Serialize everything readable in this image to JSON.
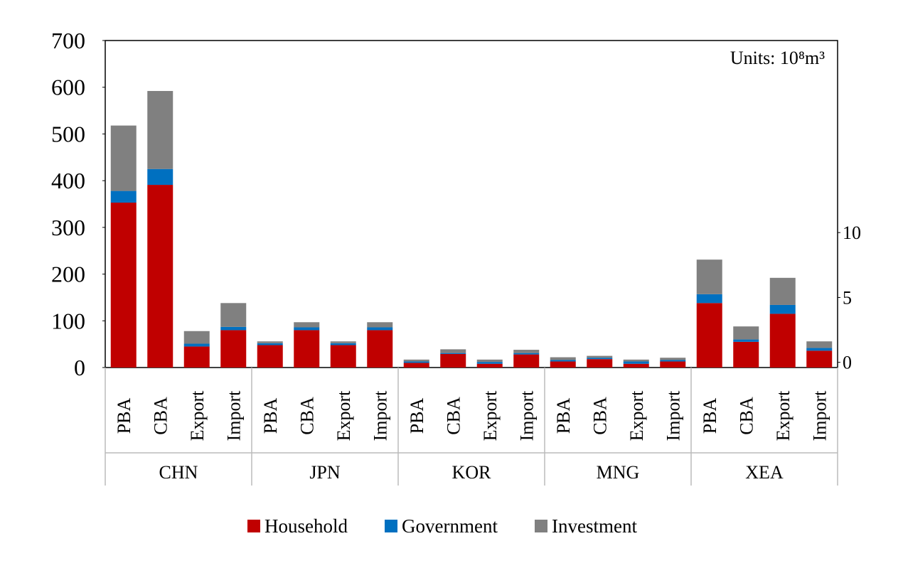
{
  "chart_data": {
    "type": "bar",
    "stacked": true,
    "annotation": "Units: 10⁸m³",
    "groups": [
      "CHN",
      "JPN",
      "KOR",
      "MNG",
      "XEA"
    ],
    "categories": [
      "PBA",
      "CBA",
      "Export",
      "Import",
      "PBA",
      "CBA",
      "Export",
      "Import",
      "PBA",
      "CBA",
      "Export",
      "Import",
      "PBA",
      "CBA",
      "Export",
      "Import",
      "PBA",
      "CBA",
      "Export",
      "Import"
    ],
    "series": [
      {
        "name": "Household",
        "color": "#c00000",
        "values": [
          353,
          391,
          45,
          80,
          48,
          80,
          48,
          80,
          10,
          29,
          8,
          28,
          13,
          18,
          8,
          13,
          138,
          55,
          115,
          36
        ]
      },
      {
        "name": "Government",
        "color": "#0070c0",
        "values": [
          25,
          34,
          6,
          7,
          4,
          6,
          4,
          6,
          3,
          2,
          4,
          3,
          3,
          3,
          5,
          3,
          19,
          5,
          19,
          6
        ]
      },
      {
        "name": "Investment",
        "color": "#808080",
        "values": [
          140,
          167,
          27,
          51,
          4,
          11,
          4,
          11,
          4,
          8,
          5,
          7,
          6,
          4,
          4,
          5,
          74,
          28,
          58,
          14
        ]
      }
    ],
    "ylim": [
      0,
      700
    ],
    "yticks": [
      0,
      100,
      200,
      300,
      400,
      500,
      600,
      700
    ],
    "y2lim": [
      -0.4,
      24.8
    ],
    "y2ticks": [
      0,
      5,
      10
    ],
    "legend": "bottom"
  }
}
